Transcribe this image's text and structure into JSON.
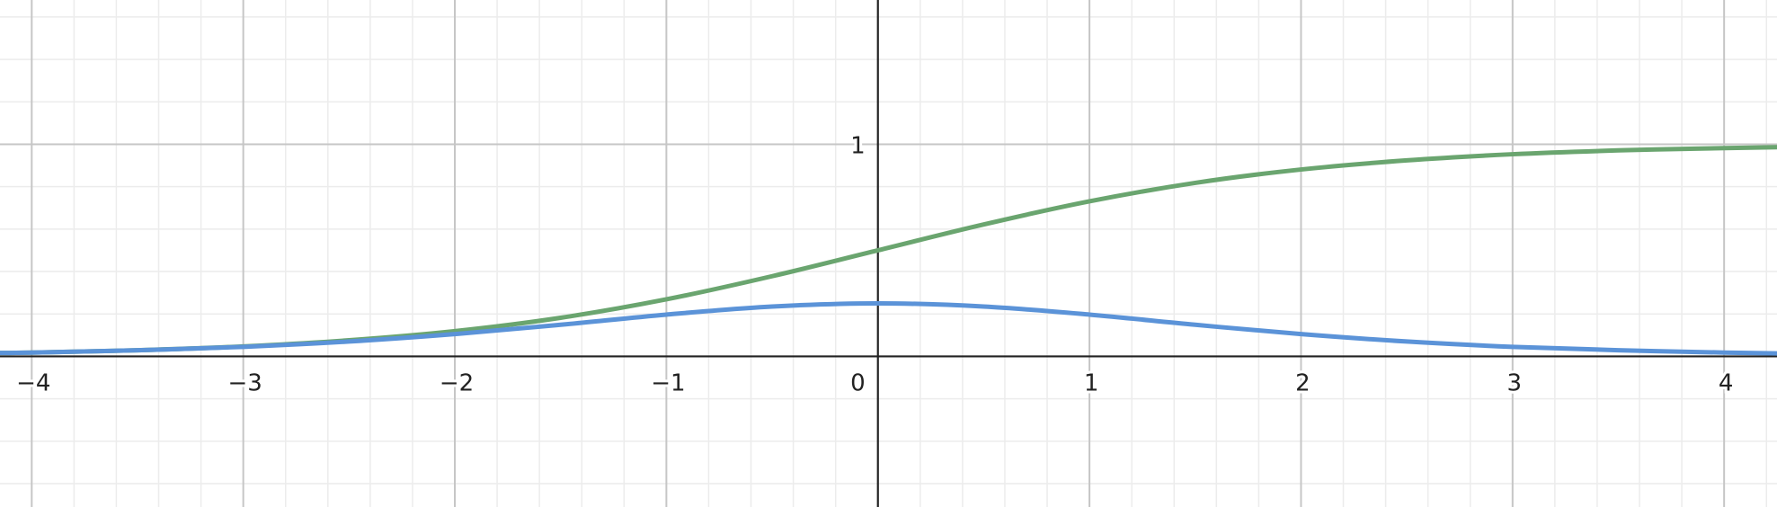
{
  "chart_data": {
    "type": "line",
    "title": "",
    "xlabel": "",
    "ylabel": "",
    "xlim": [
      -4.15,
      4.25
    ],
    "ylim": [
      -0.71,
      1.68
    ],
    "grid": true,
    "x_ticks": [
      {
        "value": -4,
        "label": "−4"
      },
      {
        "value": -3,
        "label": "−3"
      },
      {
        "value": -2,
        "label": "−2"
      },
      {
        "value": -1,
        "label": "−1"
      },
      {
        "value": 0,
        "label": "0"
      },
      {
        "value": 1,
        "label": "1"
      },
      {
        "value": 2,
        "label": "2"
      },
      {
        "value": 3,
        "label": "3"
      },
      {
        "value": 4,
        "label": "4"
      }
    ],
    "y_ticks": [
      {
        "value": 1,
        "label": "1"
      }
    ],
    "series": [
      {
        "color": "#6aa56f",
        "x": [
          -4.15,
          -4,
          -3.5,
          -3,
          -2.5,
          -2,
          -1.5,
          -1,
          -0.5,
          0,
          0.5,
          1,
          1.5,
          2,
          2.5,
          3,
          3.5,
          4,
          4.25
        ],
        "values": [
          0.016,
          0.018,
          0.029,
          0.047,
          0.076,
          0.119,
          0.182,
          0.269,
          0.378,
          0.5,
          0.622,
          0.731,
          0.818,
          0.881,
          0.924,
          0.953,
          0.971,
          0.982,
          0.986
        ]
      },
      {
        "color": "#5b93d8",
        "x": [
          -4.15,
          -4,
          -3.5,
          -3,
          -2.5,
          -2,
          -1.5,
          -1,
          -0.5,
          0,
          0.5,
          1,
          1.5,
          2,
          2.5,
          3,
          3.5,
          4,
          4.25
        ],
        "values": [
          0.016,
          0.018,
          0.029,
          0.045,
          0.07,
          0.105,
          0.149,
          0.197,
          0.235,
          0.25,
          0.235,
          0.197,
          0.149,
          0.105,
          0.07,
          0.045,
          0.029,
          0.018,
          0.014
        ]
      }
    ]
  }
}
